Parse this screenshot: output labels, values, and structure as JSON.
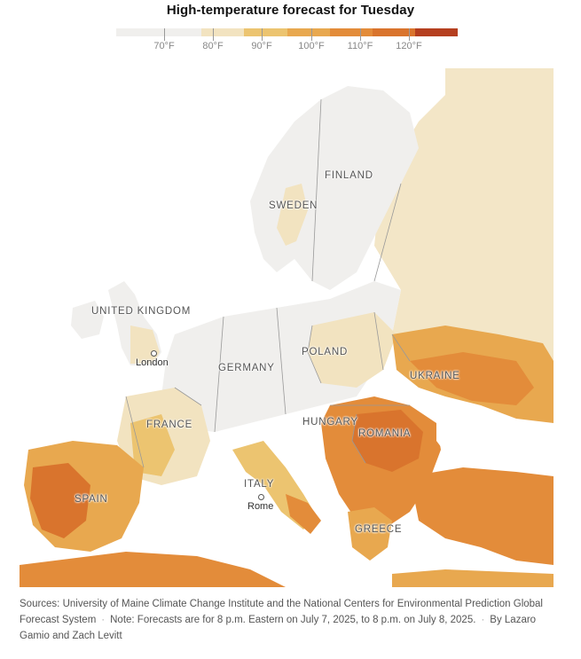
{
  "title": "High-temperature forecast for Tuesday",
  "legend": {
    "colors": [
      "#f0efed",
      "#f2e3c0",
      "#ecc470",
      "#e8a84f",
      "#e38c3a",
      "#d9742d",
      "#c95a25",
      "#b53f1f"
    ],
    "ticks": [
      {
        "label": "70°F"
      },
      {
        "label": "80°F"
      },
      {
        "label": "90°F"
      },
      {
        "label": "100°F"
      },
      {
        "label": "110°F"
      },
      {
        "label": "120°F"
      }
    ]
  },
  "countries": {
    "finland": "FINLAND",
    "sweden": "SWEDEN",
    "united_kingdom": "UNITED KINGDOM",
    "poland": "POLAND",
    "germany": "GERMANY",
    "ukraine": "UKRAINE",
    "france": "FRANCE",
    "hungary": "HUNGARY",
    "romania": "ROMANIA",
    "italy": "ITALY",
    "spain": "SPAIN",
    "greece": "GREECE"
  },
  "cities": {
    "london": "London",
    "rome": "Rome"
  },
  "footer": {
    "sources": "Sources: University of Maine Climate Change Institute and the National Centers for Environmental Prediction Global Forecast System",
    "note": "Note: Forecasts are for 8 p.m. Eastern on July 7, 2025, to 8 p.m. on July 8, 2025.",
    "byline": "By Lazaro Gamio and Zach Levitt"
  }
}
